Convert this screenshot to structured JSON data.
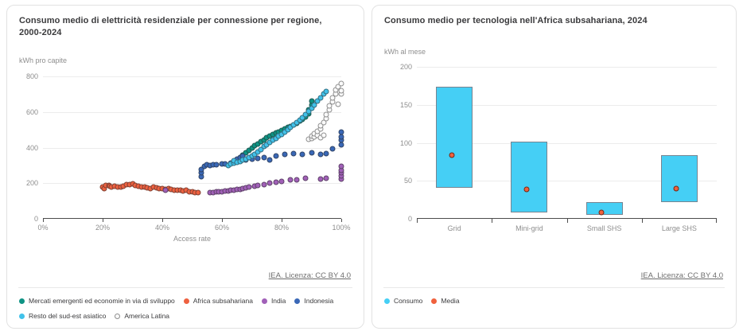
{
  "panels": {
    "left": {
      "license_label": "IEA. Licenza: CC BY 4.0"
    },
    "right": {
      "license_label": "IEA. Licenza: CC BY 4.0"
    }
  },
  "chart_data": [
    {
      "type": "scatter",
      "title": "Consumo medio di elettricità residenziale per connessione per regione, 2000-2024",
      "xlabel": "Access rate",
      "ylabel": "kWh pro capite",
      "xlim": [
        0,
        100
      ],
      "ylim": [
        0,
        800
      ],
      "x_ticks": [
        "0%",
        "20%",
        "40%",
        "60%",
        "80%",
        "100%"
      ],
      "y_ticks": [
        0,
        200,
        400,
        600,
        800
      ],
      "grid": true,
      "legend_position": "bottom",
      "series": [
        {
          "name": "Mercati emergenti ed economie in via di sviluppo",
          "color": "#0e9384",
          "points": [
            [
              64,
              318
            ],
            [
              65,
              332
            ],
            [
              66,
              345
            ],
            [
              67,
              358
            ],
            [
              68,
              371
            ],
            [
              69,
              384
            ],
            [
              70,
              397
            ],
            [
              71,
              409
            ],
            [
              72,
              421
            ],
            [
              73,
              433
            ],
            [
              74,
              444
            ],
            [
              75,
              454
            ],
            [
              76,
              463
            ],
            [
              77,
              472
            ],
            [
              78,
              481
            ],
            [
              79,
              489
            ],
            [
              80,
              497
            ],
            [
              81,
              505
            ],
            [
              82,
              512
            ],
            [
              83,
              519
            ],
            [
              84,
              527
            ],
            [
              85,
              537
            ],
            [
              86,
              548
            ],
            [
              87,
              560
            ],
            [
              88,
              572
            ],
            [
              89,
              588
            ],
            [
              89,
              612
            ],
            [
              90,
              638
            ],
            [
              90,
              662
            ]
          ]
        },
        {
          "name": "Africa subsahariana",
          "color": "#ee6140",
          "points": [
            [
              20,
              178
            ],
            [
              20.5,
              170
            ],
            [
              21,
              186
            ],
            [
              22,
              188
            ],
            [
              22.5,
              184
            ],
            [
              23,
              181
            ],
            [
              24,
              183
            ],
            [
              25,
              179
            ],
            [
              26,
              181
            ],
            [
              27,
              185
            ],
            [
              28,
              190
            ],
            [
              29,
              192
            ],
            [
              30,
              195
            ],
            [
              31,
              189
            ],
            [
              32,
              182
            ],
            [
              33,
              179
            ],
            [
              34,
              181
            ],
            [
              35,
              175
            ],
            [
              36,
              171
            ],
            [
              37,
              177
            ],
            [
              38,
              173
            ],
            [
              39,
              170
            ],
            [
              40,
              168
            ],
            [
              41,
              166
            ],
            [
              42,
              169
            ],
            [
              43,
              164
            ],
            [
              44,
              163
            ],
            [
              45,
              161
            ],
            [
              46,
              160
            ],
            [
              47,
              158
            ],
            [
              48,
              159
            ],
            [
              49,
              154
            ],
            [
              50,
              150
            ],
            [
              51,
              148
            ],
            [
              52,
              146
            ]
          ]
        },
        {
          "name": "India",
          "color": "#a160b8",
          "points": [
            [
              41,
              160
            ],
            [
              56,
              146
            ],
            [
              57,
              148
            ],
            [
              58,
              150
            ],
            [
              59,
              151
            ],
            [
              60,
              153
            ],
            [
              61,
              155
            ],
            [
              62,
              157
            ],
            [
              63,
              159
            ],
            [
              64,
              162
            ],
            [
              65,
              164
            ],
            [
              66,
              167
            ],
            [
              67,
              171
            ],
            [
              68,
              174
            ],
            [
              69,
              177
            ],
            [
              71,
              183
            ],
            [
              72,
              186
            ],
            [
              74,
              193
            ],
            [
              76,
              199
            ],
            [
              78,
              205
            ],
            [
              80,
              210
            ],
            [
              83,
              217
            ],
            [
              85,
              221
            ],
            [
              88,
              227
            ],
            [
              93,
              224
            ],
            [
              95,
              229
            ],
            [
              100,
              222
            ],
            [
              100,
              240
            ],
            [
              100,
              257
            ],
            [
              100,
              274
            ],
            [
              100,
              293
            ]
          ]
        },
        {
          "name": "Indonesia",
          "color": "#3a68b7",
          "points": [
            [
              53,
              236
            ],
            [
              53,
              257
            ],
            [
              53,
              277
            ],
            [
              54,
              297
            ],
            [
              55,
              303
            ],
            [
              56,
              301
            ],
            [
              57,
              304
            ],
            [
              58,
              306
            ],
            [
              60,
              307
            ],
            [
              61,
              309
            ],
            [
              63,
              312
            ],
            [
              64,
              323
            ],
            [
              65,
              335
            ],
            [
              66,
              342
            ],
            [
              67,
              351
            ],
            [
              68,
              331
            ],
            [
              70,
              334
            ],
            [
              72,
              338
            ],
            [
              74,
              342
            ],
            [
              76,
              331
            ],
            [
              78,
              353
            ],
            [
              81,
              362
            ],
            [
              84,
              366
            ],
            [
              87,
              363
            ],
            [
              90,
              371
            ],
            [
              93,
              362
            ],
            [
              95,
              365
            ],
            [
              97,
              392
            ],
            [
              100,
              416
            ],
            [
              100,
              441
            ],
            [
              100,
              459
            ],
            [
              100,
              488
            ]
          ]
        },
        {
          "name": "Resto del sud-est asiatico",
          "color": "#41c2ea",
          "points": [
            [
              62,
              300
            ],
            [
              63,
              307
            ],
            [
              64,
              313
            ],
            [
              64,
              327
            ],
            [
              65,
              319
            ],
            [
              66,
              323
            ],
            [
              67,
              329
            ],
            [
              68,
              335
            ],
            [
              69,
              343
            ],
            [
              70,
              353
            ],
            [
              71,
              364
            ],
            [
              72,
              377
            ],
            [
              73,
              391
            ],
            [
              74,
              405
            ],
            [
              75,
              417
            ],
            [
              76,
              431
            ],
            [
              77,
              443
            ],
            [
              78,
              453
            ],
            [
              79,
              463
            ],
            [
              80,
              474
            ],
            [
              81,
              487
            ],
            [
              82,
              501
            ],
            [
              83,
              514
            ],
            [
              84,
              527
            ],
            [
              85,
              541
            ],
            [
              86,
              555
            ],
            [
              87,
              569
            ],
            [
              88,
              586
            ],
            [
              89,
              603
            ],
            [
              90,
              621
            ],
            [
              91,
              641
            ],
            [
              92,
              661
            ],
            [
              93,
              681
            ],
            [
              94,
              701
            ],
            [
              95,
              713
            ]
          ]
        },
        {
          "name": "America Latina",
          "color": "#fafafa",
          "stroke": "#8f8f8f",
          "points": [
            [
              89,
              447
            ],
            [
              90,
              453
            ],
            [
              90,
              467
            ],
            [
              91,
              459
            ],
            [
              91,
              479
            ],
            [
              92,
              471
            ],
            [
              92,
              493
            ],
            [
              93,
              455
            ],
            [
              93,
              505
            ],
            [
              93,
              521
            ],
            [
              94,
              468
            ],
            [
              94,
              541
            ],
            [
              95,
              561
            ],
            [
              95,
              586
            ],
            [
              96,
              611
            ],
            [
              96,
              633
            ],
            [
              97,
              656
            ],
            [
              97,
              679
            ],
            [
              98,
              701
            ],
            [
              98,
              723
            ],
            [
              99,
              645
            ],
            [
              99,
              743
            ],
            [
              100,
              701
            ],
            [
              100,
              719
            ],
            [
              100,
              761
            ]
          ]
        }
      ]
    },
    {
      "type": "bar-range",
      "title": "Consumo medio per tecnologia nell'Africa subsahariana, 2024",
      "xlabel": "",
      "ylabel": "kWh al mese",
      "categories": [
        "Grid",
        "Mini-grid",
        "Small SHS",
        "Large SHS"
      ],
      "ylim": [
        0,
        200
      ],
      "y_ticks": [
        0,
        50,
        100,
        150,
        200
      ],
      "grid": true,
      "legend_position": "bottom",
      "series": [
        {
          "name": "Consumo",
          "type": "range",
          "color": "#45cff5",
          "ranges": [
            [
              40,
              173
            ],
            [
              7,
              101
            ],
            [
              4,
              21
            ],
            [
              21,
              83
            ]
          ]
        },
        {
          "name": "Media",
          "type": "point",
          "color": "#f0613d",
          "values": [
            86,
            41,
            11,
            42
          ]
        }
      ]
    }
  ]
}
